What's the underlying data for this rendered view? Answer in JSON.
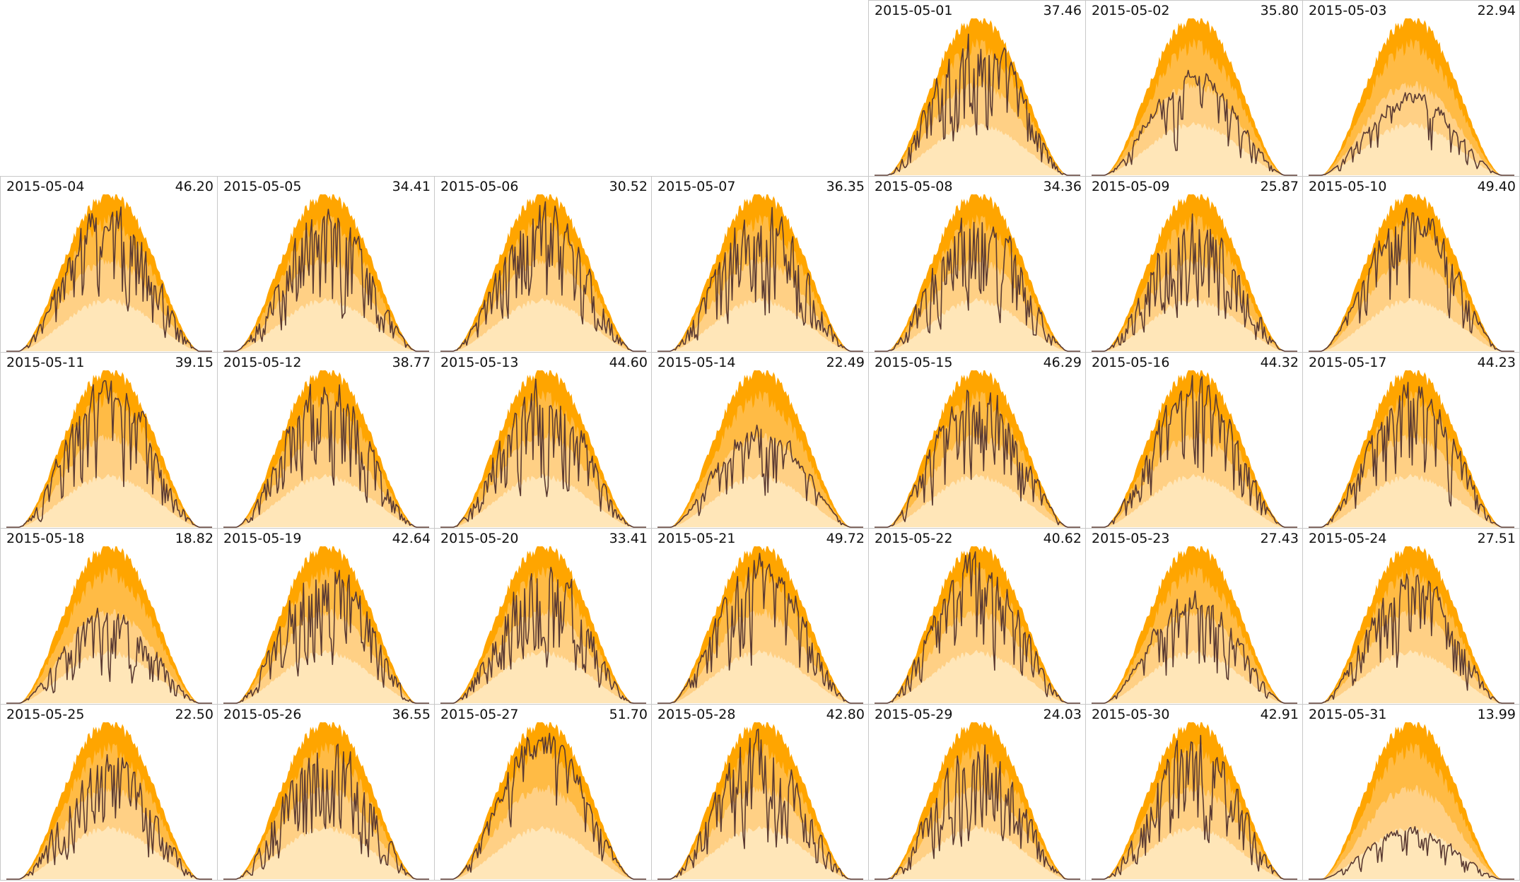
{
  "chart_data": {
    "type": "area",
    "layout": "calendar small multiples, 7 columns, weeks starting Monday",
    "month": "2015-05",
    "first_weekday_column": 4,
    "band_colors": [
      "#ffe6b8",
      "#ffd085",
      "#ffbb45",
      "#ffa500"
    ],
    "line_color": "#5a3a32",
    "grid": false,
    "days": [
      {
        "date": "2015-05-01",
        "value": "37.46",
        "variability": 0.75,
        "peak": 1.0
      },
      {
        "date": "2015-05-02",
        "value": "35.80",
        "variability": 0.55,
        "peak": 0.72
      },
      {
        "date": "2015-05-03",
        "value": "22.94",
        "variability": 0.35,
        "peak": 0.55
      },
      {
        "date": "2015-05-04",
        "value": "46.20",
        "variability": 0.6,
        "peak": 1.0
      },
      {
        "date": "2015-05-05",
        "value": "34.41",
        "variability": 0.8,
        "peak": 1.0
      },
      {
        "date": "2015-05-06",
        "value": "30.52",
        "variability": 0.9,
        "peak": 1.0
      },
      {
        "date": "2015-05-07",
        "value": "36.35",
        "variability": 0.8,
        "peak": 1.0
      },
      {
        "date": "2015-05-08",
        "value": "34.36",
        "variability": 0.8,
        "peak": 1.0
      },
      {
        "date": "2015-05-09",
        "value": "25.87",
        "variability": 0.9,
        "peak": 1.0
      },
      {
        "date": "2015-05-10",
        "value": "49.40",
        "variability": 0.35,
        "peak": 0.97
      },
      {
        "date": "2015-05-11",
        "value": "39.15",
        "variability": 0.6,
        "peak": 1.0
      },
      {
        "date": "2015-05-12",
        "value": "38.77",
        "variability": 0.7,
        "peak": 1.0
      },
      {
        "date": "2015-05-13",
        "value": "44.60",
        "variability": 0.7,
        "peak": 1.0
      },
      {
        "date": "2015-05-14",
        "value": "22.49",
        "variability": 0.35,
        "peak": 0.7
      },
      {
        "date": "2015-05-15",
        "value": "46.29",
        "variability": 0.5,
        "peak": 1.0
      },
      {
        "date": "2015-05-16",
        "value": "44.32",
        "variability": 0.6,
        "peak": 1.0
      },
      {
        "date": "2015-05-17",
        "value": "44.23",
        "variability": 0.45,
        "peak": 0.98
      },
      {
        "date": "2015-05-18",
        "value": "18.82",
        "variability": 0.6,
        "peak": 0.65
      },
      {
        "date": "2015-05-19",
        "value": "42.64",
        "variability": 0.95,
        "peak": 1.0
      },
      {
        "date": "2015-05-20",
        "value": "33.41",
        "variability": 0.85,
        "peak": 1.0
      },
      {
        "date": "2015-05-21",
        "value": "49.72",
        "variability": 0.4,
        "peak": 1.0
      },
      {
        "date": "2015-05-22",
        "value": "40.62",
        "variability": 0.5,
        "peak": 1.0
      },
      {
        "date": "2015-05-23",
        "value": "27.43",
        "variability": 0.4,
        "peak": 0.75
      },
      {
        "date": "2015-05-24",
        "value": "27.51",
        "variability": 0.6,
        "peak": 0.9
      },
      {
        "date": "2015-05-25",
        "value": "22.50",
        "variability": 0.75,
        "peak": 0.85
      },
      {
        "date": "2015-05-26",
        "value": "36.55",
        "variability": 0.8,
        "peak": 1.0
      },
      {
        "date": "2015-05-27",
        "value": "51.70",
        "variability": 0.25,
        "peak": 1.0
      },
      {
        "date": "2015-05-28",
        "value": "42.80",
        "variability": 0.95,
        "peak": 1.0
      },
      {
        "date": "2015-05-29",
        "value": "24.03",
        "variability": 0.8,
        "peak": 0.95
      },
      {
        "date": "2015-05-30",
        "value": "42.91",
        "variability": 0.95,
        "peak": 1.0
      },
      {
        "date": "2015-05-31",
        "value": "13.99",
        "variability": 0.5,
        "peak": 0.35
      }
    ]
  }
}
